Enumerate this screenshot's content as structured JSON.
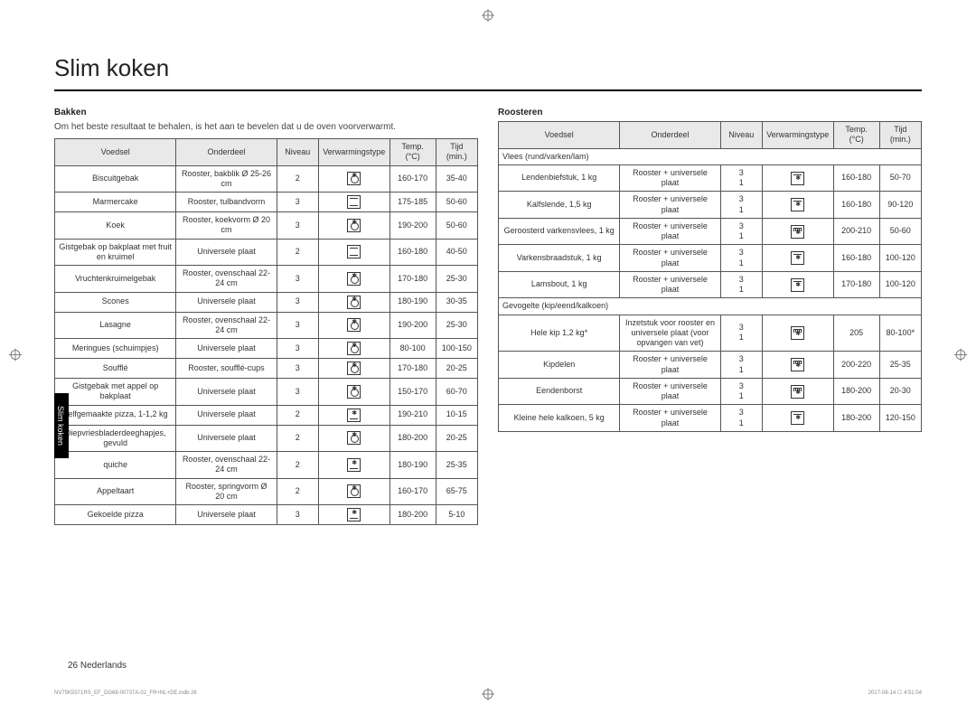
{
  "page_title": "Slim koken",
  "side_tab": "Slim koken",
  "footer_page": "26   Nederlands",
  "footer_docid": "NV75K5571RS_EF_DG68-00737A-02_FR+NL+DE.indb   26",
  "footer_date": "2017-08-14   ☐ 4:51:04",
  "left": {
    "heading": "Bakken",
    "intro": "Om het beste resultaat te behalen, is het aan te bevelen dat u de oven voorverwarmt.",
    "headers": [
      "Voedsel",
      "Onderdeel",
      "Niveau",
      "Verwarmingstype",
      "Temp. (°C)",
      "Tijd (min.)"
    ],
    "rows": [
      {
        "food": "Biscuitgebak",
        "acc": "Rooster, bakblik Ø 25-26 cm",
        "lvl": "2",
        "icon": "fan",
        "temp": "160-170",
        "time": "35-40"
      },
      {
        "food": "Marmercake",
        "acc": "Rooster, tulbandvorm",
        "lvl": "3",
        "icon": "topbot",
        "temp": "175-185",
        "time": "50-60"
      },
      {
        "food": "Koek",
        "acc": "Rooster, koekvorm Ø 20 cm",
        "lvl": "3",
        "icon": "fan",
        "temp": "190-200",
        "time": "50-60"
      },
      {
        "food": "Gistgebak op bakplaat met fruit en kruimel",
        "acc": "Universele plaat",
        "lvl": "2",
        "icon": "topbot",
        "temp": "160-180",
        "time": "40-50"
      },
      {
        "food": "Vruchtenkruimelgebak",
        "acc": "Rooster, ovenschaal 22-24 cm",
        "lvl": "3",
        "icon": "fan",
        "temp": "170-180",
        "time": "25-30"
      },
      {
        "food": "Scones",
        "acc": "Universele plaat",
        "lvl": "3",
        "icon": "fan",
        "temp": "180-190",
        "time": "30-35"
      },
      {
        "food": "Lasagne",
        "acc": "Rooster, ovenschaal 22-24 cm",
        "lvl": "3",
        "icon": "fan",
        "temp": "190-200",
        "time": "25-30"
      },
      {
        "food": "Meringues (schuimpjes)",
        "acc": "Universele plaat",
        "lvl": "3",
        "icon": "fan",
        "temp": "80-100",
        "time": "100-150"
      },
      {
        "food": "Soufflé",
        "acc": "Rooster, soufflé-cups",
        "lvl": "3",
        "icon": "fan",
        "temp": "170-180",
        "time": "20-25"
      },
      {
        "food": "Gistgebak met appel op bakplaat",
        "acc": "Universele plaat",
        "lvl": "3",
        "icon": "fan",
        "temp": "150-170",
        "time": "60-70"
      },
      {
        "food": "Zelfgemaakte pizza, 1-1,2 kg",
        "acc": "Universele plaat",
        "lvl": "2",
        "icon": "bot-fan",
        "temp": "190-210",
        "time": "10-15"
      },
      {
        "food": "Diepvriesbladerdeeghapjes, gevuld",
        "acc": "Universele plaat",
        "lvl": "2",
        "icon": "fan",
        "temp": "180-200",
        "time": "20-25"
      },
      {
        "food": "quiche",
        "acc": "Rooster, ovenschaal 22-24 cm",
        "lvl": "2",
        "icon": "bot-fan",
        "temp": "180-190",
        "time": "25-35"
      },
      {
        "food": "Appeltaart",
        "acc": "Rooster, springvorm Ø 20 cm",
        "lvl": "2",
        "icon": "fan",
        "temp": "160-170",
        "time": "65-75"
      },
      {
        "food": "Gekoelde pizza",
        "acc": "Universele plaat",
        "lvl": "3",
        "icon": "bot-fan",
        "temp": "180-200",
        "time": "5-10"
      }
    ]
  },
  "right": {
    "heading": "Roosteren",
    "headers": [
      "Voedsel",
      "Onderdeel",
      "Niveau",
      "Verwarmingstype",
      "Temp. (°C)",
      "Tijd (min.)"
    ],
    "group1": "Vlees (rund/varken/lam)",
    "rows1": [
      {
        "food": "Lendenbiefstuk, 1 kg",
        "acc": "Rooster + universele plaat",
        "lvl": "3 1",
        "icon": "top-fan",
        "temp": "160-180",
        "time": "50-70"
      },
      {
        "food": "Kalfslende, 1,5 kg",
        "acc": "Rooster + universele plaat",
        "lvl": "3 1",
        "icon": "top-fan",
        "temp": "160-180",
        "time": "90-120"
      },
      {
        "food": "Geroosterd varkensvlees, 1 kg",
        "acc": "Rooster + universele plaat",
        "lvl": "3 1",
        "icon": "grill",
        "temp": "200-210",
        "time": "50-60"
      },
      {
        "food": "Varkensbraadstuk, 1 kg",
        "acc": "Rooster + universele plaat",
        "lvl": "3 1",
        "icon": "top-fan",
        "temp": "160-180",
        "time": "100-120"
      },
      {
        "food": "Lamsbout, 1 kg",
        "acc": "Rooster + universele plaat",
        "lvl": "3 1",
        "icon": "top-fan",
        "temp": "170-180",
        "time": "100-120"
      }
    ],
    "group2": "Gevogelte (kip/eend/kalkoen)",
    "rows2": [
      {
        "food": "Hele kip 1,2 kg*",
        "acc": "Inzetstuk voor rooster en universele plaat (voor opvangen van vet)",
        "lvl": "3 1",
        "icon": "grill",
        "temp": "205",
        "time": "80-100*"
      },
      {
        "food": "Kipdelen",
        "acc": "Rooster + universele plaat",
        "lvl": "3 1",
        "icon": "grill",
        "temp": "200-220",
        "time": "25-35"
      },
      {
        "food": "Eendenborst",
        "acc": "Rooster + universele plaat",
        "lvl": "3 1",
        "icon": "grill",
        "temp": "180-200",
        "time": "20-30"
      },
      {
        "food": "Kleine hele kalkoen, 5 kg",
        "acc": "Rooster + universele plaat",
        "lvl": "3 1",
        "icon": "top-fan",
        "temp": "180-200",
        "time": "120-150"
      }
    ]
  }
}
